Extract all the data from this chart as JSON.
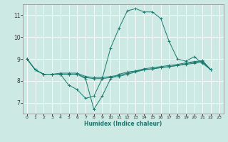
{
  "title": "",
  "xlabel": "Humidex (Indice chaleur)",
  "ylabel": "",
  "background_color": "#cce9e4",
  "grid_color": "#ffffff",
  "line_color": "#1a7a6e",
  "xlim": [
    -0.5,
    23.5
  ],
  "ylim": [
    6.5,
    11.5
  ],
  "yticks": [
    7,
    8,
    9,
    10,
    11
  ],
  "xtick_labels": [
    "0",
    "1",
    "2",
    "3",
    "4",
    "5",
    "6",
    "7",
    "8",
    "9",
    "10",
    "11",
    "12",
    "13",
    "14",
    "15",
    "16",
    "17",
    "18",
    "19",
    "20",
    "21",
    "22",
    "23"
  ],
  "xtick_vals": [
    0,
    1,
    2,
    3,
    4,
    5,
    6,
    7,
    8,
    9,
    10,
    11,
    12,
    13,
    14,
    15,
    16,
    17,
    18,
    19,
    20,
    21,
    22,
    23
  ],
  "series": [
    [
      9.0,
      8.5,
      8.3,
      8.3,
      8.3,
      7.8,
      7.6,
      7.2,
      7.3,
      8.1,
      9.5,
      10.4,
      11.2,
      11.3,
      11.15,
      11.15,
      10.85,
      9.8,
      9.0,
      8.9,
      9.1,
      8.8,
      8.5
    ],
    [
      9.0,
      8.5,
      8.3,
      8.3,
      8.3,
      8.3,
      8.3,
      8.1,
      6.7,
      7.3,
      8.1,
      8.3,
      8.4,
      8.45,
      8.5,
      8.55,
      8.6,
      8.65,
      8.7,
      8.75,
      8.8,
      8.85,
      8.5
    ],
    [
      9.0,
      8.5,
      8.3,
      8.3,
      8.3,
      8.3,
      8.3,
      8.15,
      8.1,
      8.1,
      8.15,
      8.2,
      8.3,
      8.4,
      8.5,
      8.55,
      8.6,
      8.65,
      8.7,
      8.78,
      8.85,
      8.9,
      8.5
    ],
    [
      9.0,
      8.5,
      8.3,
      8.3,
      8.35,
      8.35,
      8.35,
      8.2,
      8.15,
      8.15,
      8.2,
      8.25,
      8.35,
      8.45,
      8.55,
      8.6,
      8.65,
      8.7,
      8.75,
      8.82,
      8.88,
      8.92,
      8.5
    ]
  ]
}
